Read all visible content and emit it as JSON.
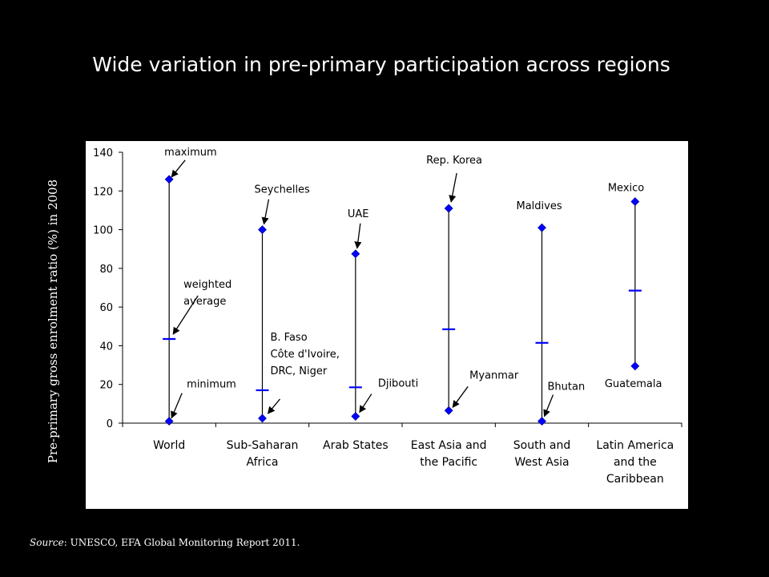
{
  "title": "Wide variation in pre-primary participation across regions",
  "source": {
    "prefix": "Source",
    "text": ": UNESCO, EFA Global Monitoring Report 2011."
  },
  "colors": {
    "background": "#000000",
    "panel": "#ffffff",
    "marker": "#0000ff",
    "axis": "#000000"
  },
  "chart_data": {
    "type": "range",
    "title": "Wide variation in pre-primary participation across regions",
    "ylabel": "Pre-primary gross enrolment ratio (%) in 2008",
    "ylim": [
      0,
      140
    ],
    "yticks": [
      0,
      20,
      40,
      60,
      80,
      100,
      120,
      140
    ],
    "grid": false,
    "categories": [
      [
        "World"
      ],
      [
        "Sub-Saharan",
        "Africa"
      ],
      [
        "Arab States"
      ],
      [
        "East Asia and",
        "the Pacific"
      ],
      [
        "South and",
        "West Asia"
      ],
      [
        "Latin America",
        "and the",
        "Caribbean"
      ]
    ],
    "series": [
      {
        "name": "maximum",
        "values": [
          126,
          100,
          87.5,
          111,
          101,
          114.5
        ]
      },
      {
        "name": "weighted average",
        "values": [
          43.5,
          17,
          18.5,
          48.5,
          41.5,
          68.5
        ]
      },
      {
        "name": "minimum",
        "values": [
          1,
          2.5,
          3.5,
          6.5,
          1,
          29.5
        ]
      }
    ],
    "annotations": [
      {
        "lines": [
          "maximum"
        ],
        "category": 0,
        "point": "max",
        "arrow": true
      },
      {
        "lines": [
          "weighted",
          "average"
        ],
        "category": 0,
        "point": "avg",
        "arrow": true
      },
      {
        "lines": [
          "minimum"
        ],
        "category": 0,
        "point": "min",
        "arrow": true
      },
      {
        "lines": [
          "Seychelles"
        ],
        "category": 1,
        "point": "max",
        "arrow": true
      },
      {
        "lines": [
          "B. Faso",
          "Côte d'Ivoire,",
          "DRC, Niger"
        ],
        "category": 1,
        "point": "min",
        "arrow": true
      },
      {
        "lines": [
          "UAE"
        ],
        "category": 2,
        "point": "max",
        "arrow": true
      },
      {
        "lines": [
          "Djibouti"
        ],
        "category": 2,
        "point": "min",
        "arrow": true
      },
      {
        "lines": [
          "Rep. Korea"
        ],
        "category": 3,
        "point": "max",
        "arrow": true
      },
      {
        "lines": [
          "Myanmar"
        ],
        "category": 3,
        "point": "min",
        "arrow": true
      },
      {
        "lines": [
          "Maldives"
        ],
        "category": 4,
        "point": "max",
        "arrow": false
      },
      {
        "lines": [
          "Bhutan"
        ],
        "category": 4,
        "point": "min",
        "arrow": true
      },
      {
        "lines": [
          "Mexico"
        ],
        "category": 5,
        "point": "max",
        "arrow": false
      },
      {
        "lines": [
          "Guatemala"
        ],
        "category": 5,
        "point": "min",
        "arrow": false
      }
    ]
  }
}
